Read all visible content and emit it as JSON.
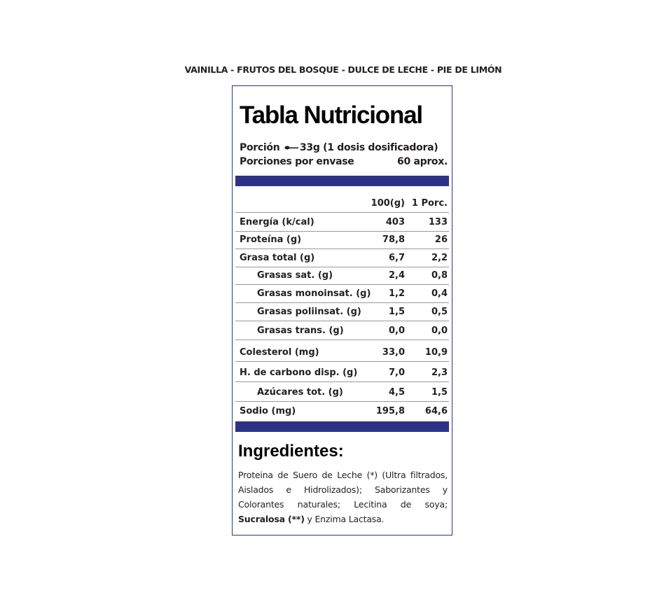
{
  "flavors": "VAINILLA - FRUTOS DEL BOSQUE - DULCE DE LECHE - PIE DE LIMÓN",
  "title": "Tabla Nutricional",
  "portion": {
    "label": "Porción",
    "icon": "spoon-icon",
    "value": "33g (1 dosis dosificadora)",
    "per_container_label": "Porciones por envase",
    "per_container_value": "60 aprox."
  },
  "brand_color": "#2e3287",
  "table": {
    "headers": [
      "100(g)",
      "1 Porc."
    ],
    "rows": [
      {
        "label": "Energía (k/cal)",
        "v100": "403",
        "vporc": "133"
      },
      {
        "label": "Proteína (g)",
        "v100": "78,8",
        "vporc": "26"
      },
      {
        "label": "Grasa total (g)",
        "v100": "6,7",
        "vporc": "2,2"
      },
      {
        "label": "Grasas sat. (g)",
        "v100": "2,4",
        "vporc": "0,8"
      },
      {
        "label": "Grasas monoinsat. (g)",
        "v100": "1,2",
        "vporc": "0,4"
      },
      {
        "label": "Grasas poliinsat. (g)",
        "v100": "1,5",
        "vporc": "0,5"
      },
      {
        "label": "Grasas trans. (g)",
        "v100": "0,0",
        "vporc": "0,0"
      },
      {
        "label": "Colesterol (mg)",
        "v100": "33,0",
        "vporc": "10,9"
      },
      {
        "label": "H. de carbono disp. (g)",
        "v100": "7,0",
        "vporc": "2,3"
      },
      {
        "label": "Azúcares tot. (g)",
        "v100": "4,5",
        "vporc": "1,5"
      },
      {
        "label": "Sodio (mg)",
        "v100": "195,8",
        "vporc": "64,6"
      }
    ]
  },
  "ingredients": {
    "title": "Ingredientes:",
    "text_a": "Proteina de Suero de Leche (*) (Ultra filtrados, Aislados e Hidrolizados); Saborizantes y Colorantes naturales; Lecitina de soya; ",
    "bold": "Sucralosa (**)",
    "text_b": " y Enzima Lactasa."
  }
}
